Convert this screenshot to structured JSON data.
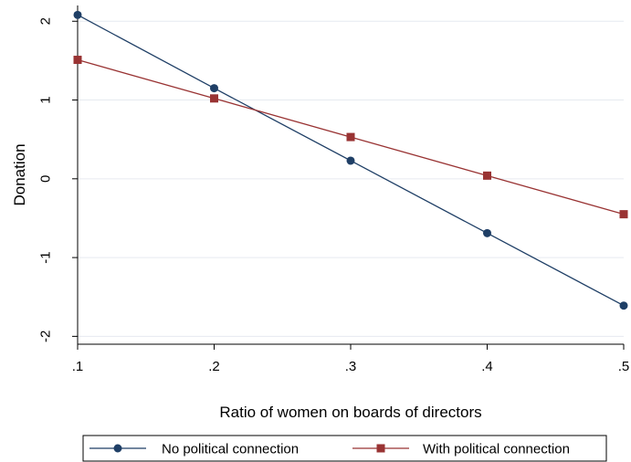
{
  "chart_data": {
    "type": "line",
    "title": "",
    "xlabel": "Ratio of women on boards of directors",
    "ylabel": "Donation",
    "x": [
      0.1,
      0.2,
      0.3,
      0.4,
      0.5
    ],
    "x_tick_values": [
      0.1,
      0.2,
      0.3,
      0.4,
      0.5
    ],
    "x_tick_labels": [
      ".1",
      ".2",
      ".3",
      ".4",
      ".5"
    ],
    "y_tick_values": [
      -2,
      -1,
      0,
      1,
      2
    ],
    "y_tick_labels": [
      "-2",
      "-1",
      "0",
      "1",
      "2"
    ],
    "xlim": [
      0.1,
      0.5
    ],
    "ylim": [
      -2.1,
      2.2
    ],
    "grid": "horizontal",
    "legend_position": "bottom",
    "series": [
      {
        "name": "No political connection",
        "values": [
          2.08,
          1.15,
          0.23,
          -0.69,
          -1.61
        ],
        "color": "#1f3f66",
        "marker": "circle"
      },
      {
        "name": "With political connection",
        "values": [
          1.51,
          1.02,
          0.53,
          0.04,
          -0.45
        ],
        "color": "#993333",
        "marker": "square"
      }
    ]
  }
}
